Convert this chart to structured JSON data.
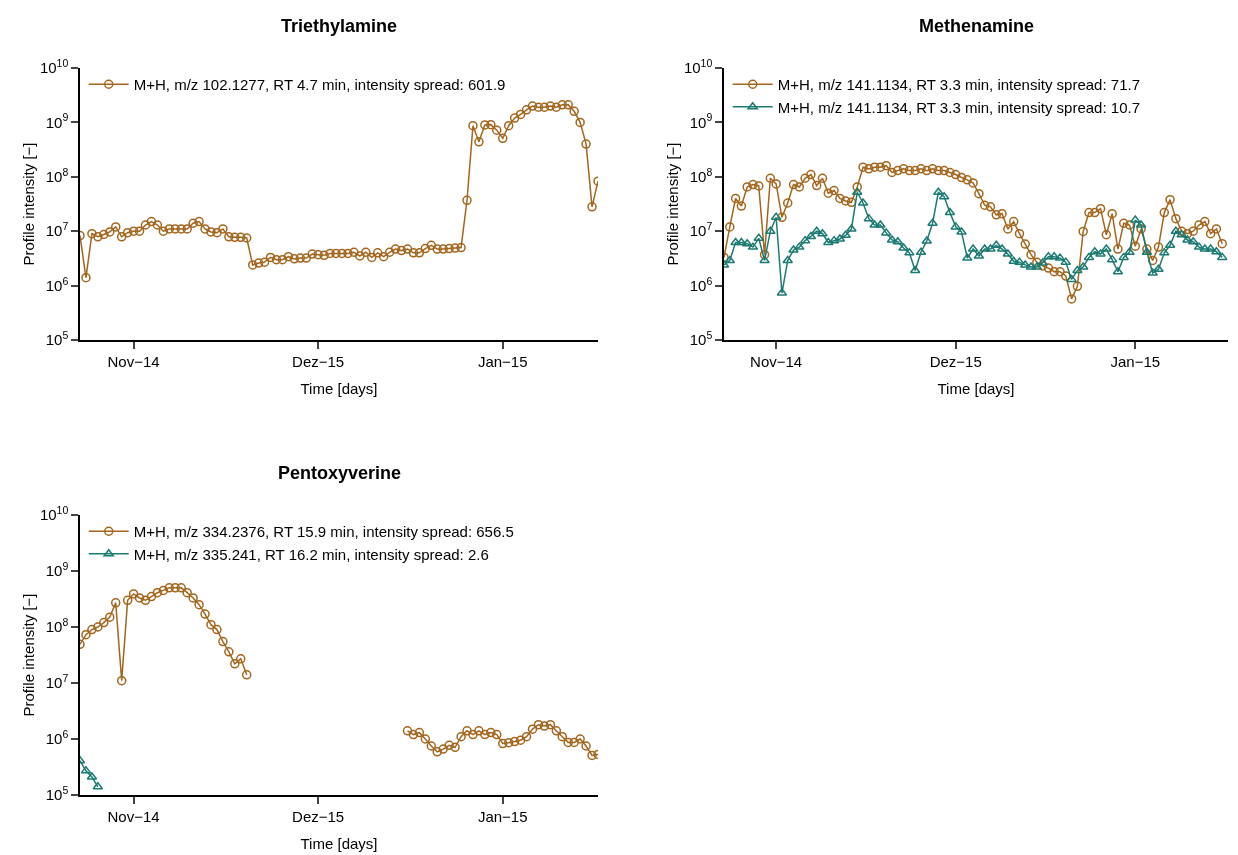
{
  "chart_data": [
    {
      "type": "line",
      "title": "Triethylamine",
      "xlabel": "Time [days]",
      "ylabel": "Profile intensity [−]",
      "log": "y",
      "legend": "top left",
      "categories": [
        null,
        null,
        null,
        null,
        null,
        null,
        null,
        null,
        null,
        "Nov−14",
        null,
        null,
        null,
        null,
        null,
        null,
        null,
        null,
        null,
        null,
        null,
        null,
        null,
        null,
        null,
        null,
        null,
        null,
        null,
        null,
        null,
        null,
        null,
        null,
        null,
        null,
        null,
        null,
        null,
        null,
        "Dez−15",
        null,
        null,
        null,
        null,
        null,
        null,
        null,
        null,
        null,
        null,
        null,
        null,
        null,
        null,
        null,
        null,
        null,
        null,
        null,
        null,
        null,
        null,
        null,
        null,
        null,
        null,
        null,
        null,
        null,
        null,
        "Jan−15",
        null,
        null,
        null,
        null,
        null,
        null,
        null,
        null,
        null,
        null,
        null,
        null,
        null,
        null,
        null,
        null
      ],
      "ylim": [
        100000.0,
        10000000000.0
      ],
      "yticks": [
        {
          "value": 100000.0,
          "label": "10$^{5}$"
        },
        {
          "value": 1000000.0,
          "label": "10$^{6}$"
        },
        {
          "value": 10000000.0,
          "label": "10$^{7}$"
        },
        {
          "value": 100000000.0,
          "label": "10$^{8}$"
        },
        {
          "value": 1000000000.0,
          "label": "10$^{9}$"
        },
        {
          "value": 10000000000.0,
          "label": "10$^{10}$"
        }
      ],
      "series": [
        {
          "name": "M+H, m/z 102.1277, RT 4.7 min, intensity spread: 601.9",
          "color": "#a5651c",
          "marker": "circle",
          "values": [
            8300000.0,
            1400000.0,
            9000000.0,
            7900000.0,
            8700000.0,
            9700000.0,
            12000000.0,
            7900000.0,
            9400000.0,
            10000000.0,
            10000000.0,
            13000000.0,
            15000000.0,
            13000000.0,
            10000000.0,
            11000000.0,
            11000000.0,
            11000000.0,
            11000000.0,
            14000000.0,
            15000000.0,
            11000000.0,
            9700000.0,
            9400000.0,
            11000000.0,
            7900000.0,
            7700000.0,
            7700000.0,
            7500000.0,
            2400000.0,
            2600000.0,
            2700000.0,
            3300000.0,
            3000000.0,
            3000000.0,
            3400000.0,
            3100000.0,
            3200000.0,
            3200000.0,
            3800000.0,
            3700000.0,
            3600000.0,
            3900000.0,
            3900000.0,
            3900000.0,
            3900000.0,
            4100000.0,
            3500000.0,
            4100000.0,
            3300000.0,
            4000000.0,
            3400000.0,
            4100000.0,
            4700000.0,
            4400000.0,
            4700000.0,
            4000000.0,
            4000000.0,
            4800000.0,
            5500000.0,
            4700000.0,
            4700000.0,
            4800000.0,
            4900000.0,
            5000000.0,
            37000000.0,
            870000000.0,
            440000000.0,
            900000000.0,
            910000000.0,
            720000000.0,
            510000000.0,
            870000000.0,
            1200000000.0,
            1400000000.0,
            1700000000.0,
            2000000000.0,
            1900000000.0,
            1900000000.0,
            2000000000.0,
            1900000000.0,
            2100000000.0,
            2100000000.0,
            1600000000.0,
            1000000000.0,
            400000000.0,
            28000000.0,
            83000000.0
          ]
        }
      ]
    },
    {
      "type": "line",
      "title": "Methenamine",
      "xlabel": "Time [days]",
      "ylabel": "Profile intensity [−]",
      "log": "y",
      "legend": "top left",
      "categories": [
        null,
        null,
        null,
        null,
        null,
        null,
        null,
        null,
        null,
        "Nov−14",
        null,
        null,
        null,
        null,
        null,
        null,
        null,
        null,
        null,
        null,
        null,
        null,
        null,
        null,
        null,
        null,
        null,
        null,
        null,
        null,
        null,
        null,
        null,
        null,
        null,
        null,
        null,
        null,
        null,
        null,
        "Dez−15",
        null,
        null,
        null,
        null,
        null,
        null,
        null,
        null,
        null,
        null,
        null,
        null,
        null,
        null,
        null,
        null,
        null,
        null,
        null,
        null,
        null,
        null,
        null,
        null,
        null,
        null,
        null,
        null,
        null,
        null,
        "Jan−15",
        null,
        null,
        null,
        null,
        null,
        null,
        null,
        null,
        null,
        null,
        null,
        null,
        null,
        null,
        null,
        null
      ],
      "ylim": [
        100000.0,
        10000000000.0
      ],
      "yticks": [
        {
          "value": 100000.0,
          "label": "10$^{5}$"
        },
        {
          "value": 1000000.0,
          "label": "10$^{6}$"
        },
        {
          "value": 10000000.0,
          "label": "10$^{7}$"
        },
        {
          "value": 100000000.0,
          "label": "10$^{8}$"
        },
        {
          "value": 1000000000.0,
          "label": "10$^{9}$"
        },
        {
          "value": 10000000000.0,
          "label": "10$^{10}$"
        }
      ],
      "series": [
        {
          "name": "M+H, m/z 141.1134, RT 3.3 min, intensity spread: 71.7",
          "color": "#a5651c",
          "marker": "circle",
          "values": [
            3300000.0,
            12000000.0,
            40000000.0,
            29000000.0,
            65000000.0,
            72000000.0,
            68000000.0,
            3700000.0,
            94000000.0,
            74000000.0,
            18000000.0,
            33000000.0,
            72000000.0,
            65000000.0,
            94000000.0,
            110000000.0,
            69000000.0,
            94000000.0,
            50000000.0,
            56000000.0,
            40000000.0,
            36000000.0,
            34000000.0,
            65000000.0,
            150000000.0,
            140000000.0,
            150000000.0,
            150000000.0,
            160000000.0,
            120000000.0,
            130000000.0,
            140000000.0,
            130000000.0,
            130000000.0,
            140000000.0,
            130000000.0,
            140000000.0,
            130000000.0,
            130000000.0,
            120000000.0,
            110000000.0,
            97000000.0,
            88000000.0,
            77000000.0,
            49000000.0,
            30000000.0,
            28000000.0,
            20000000.0,
            21000000.0,
            11000000.0,
            15000000.0,
            9000000.0,
            5800000.0,
            3700000.0,
            2700000.0,
            2300000.0,
            2100000.0,
            1800000.0,
            1800000.0,
            1500000.0,
            570000.0,
            970000.0,
            9900000.0,
            22000000.0,
            22000000.0,
            26000000.0,
            8600000.0,
            21000000.0,
            4700000.0,
            14000000.0,
            13000000.0,
            5300000.0,
            11000000.0,
            4700000.0,
            2900000.0,
            5100000.0,
            22000000.0,
            38000000.0,
            17000000.0,
            10000000.0,
            9000000.0,
            10000000.0,
            13000000.0,
            15000000.0,
            9000000.0,
            11000000.0,
            5900000.0,
            null
          ]
        },
        {
          "name": "M+H, m/z 141.1134, RT 3.3 min, intensity spread: 10.7",
          "color": "#1b7a72",
          "marker": "triangle",
          "values": [
            2400000.0,
            2900000.0,
            6200000.0,
            6200000.0,
            5900000.0,
            5100000.0,
            7400000.0,
            2900000.0,
            10000000.0,
            18000000.0,
            730000.0,
            2900000.0,
            4500000.0,
            5100000.0,
            6700000.0,
            8000000.0,
            10000000.0,
            9000000.0,
            6200000.0,
            6700000.0,
            7200000.0,
            8400000.0,
            11000000.0,
            52000000.0,
            33000000.0,
            17000000.0,
            13000000.0,
            13000000.0,
            9300000.0,
            6900000.0,
            6400000.0,
            4900000.0,
            4000000.0,
            1900000.0,
            4100000.0,
            6600000.0,
            14000000.0,
            52000000.0,
            43000000.0,
            22000000.0,
            12000000.0,
            9700000.0,
            3200000.0,
            4700000.0,
            3500000.0,
            4700000.0,
            4700000.0,
            5500000.0,
            4700000.0,
            3800000.0,
            2800000.0,
            2700000.0,
            2400000.0,
            2200000.0,
            2200000.0,
            2600000.0,
            3400000.0,
            3400000.0,
            3200000.0,
            2700000.0,
            1300000.0,
            1900000.0,
            2200000.0,
            3300000.0,
            4200000.0,
            3800000.0,
            4700000.0,
            3000000.0,
            1800000.0,
            3300000.0,
            4100000.0,
            16000000.0,
            13000000.0,
            4100000.0,
            1700000.0,
            2000000.0,
            4000000.0,
            5500000.0,
            10000000.0,
            8600000.0,
            6900000.0,
            6400000.0,
            5100000.0,
            4700000.0,
            4700000.0,
            4200000.0,
            3300000.0,
            null
          ]
        }
      ]
    },
    {
      "type": "line",
      "title": "Pentoxyverine",
      "xlabel": "Time [days]",
      "ylabel": "Profile intensity [−]",
      "log": "y",
      "legend": "top left",
      "categories": [
        null,
        null,
        null,
        null,
        null,
        null,
        null,
        null,
        null,
        "Nov−14",
        null,
        null,
        null,
        null,
        null,
        null,
        null,
        null,
        null,
        null,
        null,
        null,
        null,
        null,
        null,
        null,
        null,
        null,
        null,
        null,
        null,
        null,
        null,
        null,
        null,
        null,
        null,
        null,
        null,
        null,
        "Dez−15",
        null,
        null,
        null,
        null,
        null,
        null,
        null,
        null,
        null,
        null,
        null,
        null,
        null,
        null,
        null,
        null,
        null,
        null,
        null,
        null,
        null,
        null,
        null,
        null,
        null,
        null,
        null,
        null,
        null,
        null,
        "Jan−15",
        null,
        null,
        null,
        null,
        null,
        null,
        null,
        null,
        null,
        null,
        null,
        null,
        null,
        null,
        null,
        null
      ],
      "ylim": [
        100000.0,
        10000000000.0
      ],
      "yticks": [
        {
          "value": 100000.0,
          "label": "10$^{5}$"
        },
        {
          "value": 1000000.0,
          "label": "10$^{6}$"
        },
        {
          "value": 10000000.0,
          "label": "10$^{7}$"
        },
        {
          "value": 100000000.0,
          "label": "10$^{8}$"
        },
        {
          "value": 1000000000.0,
          "label": "10$^{9}$"
        },
        {
          "value": 10000000000.0,
          "label": "10$^{10}$"
        }
      ],
      "series": [
        {
          "name": "M+H, m/z 334.2376, RT 15.9 min, intensity spread: 656.5",
          "color": "#a5651c",
          "marker": "circle",
          "values": [
            49000000.0,
            73000000.0,
            90000000.0,
            100000000.0,
            120000000.0,
            150000000.0,
            270000000.0,
            11000000.0,
            300000000.0,
            390000000.0,
            330000000.0,
            300000000.0,
            350000000.0,
            410000000.0,
            450000000.0,
            500000000.0,
            500000000.0,
            500000000.0,
            410000000.0,
            330000000.0,
            250000000.0,
            170000000.0,
            110000000.0,
            90000000.0,
            55000000.0,
            36000000.0,
            22000000.0,
            27000000.0,
            14000000.0,
            null,
            null,
            null,
            null,
            null,
            null,
            null,
            null,
            null,
            null,
            null,
            null,
            null,
            null,
            null,
            null,
            null,
            null,
            null,
            null,
            null,
            null,
            null,
            null,
            null,
            null,
            1400000.0,
            1200000.0,
            1300000.0,
            1000000.0,
            750000.0,
            590000.0,
            660000.0,
            770000.0,
            710000.0,
            1100000.0,
            1400000.0,
            1200000.0,
            1400000.0,
            1200000.0,
            1300000.0,
            1200000.0,
            830000.0,
            860000.0,
            900000.0,
            950000.0,
            1100000.0,
            1500000.0,
            1800000.0,
            1700000.0,
            1800000.0,
            1400000.0,
            1100000.0,
            870000.0,
            870000.0,
            1000000.0,
            750000.0,
            510000.0,
            530000.0
          ]
        },
        {
          "name": "M+H, m/z 335.241, RT 16.2 min, intensity spread: 2.6",
          "color": "#1b7a72",
          "marker": "triangle",
          "values": [
            410000.0,
            270000.0,
            210000.0,
            140000.0,
            null,
            null,
            null,
            null,
            null,
            null,
            null,
            null,
            null,
            null,
            null,
            null,
            null,
            null,
            null,
            null,
            null,
            null,
            null,
            null,
            null,
            null,
            null,
            null,
            null,
            null,
            null,
            null,
            null,
            null,
            null,
            null,
            null,
            null,
            null,
            null,
            null,
            null,
            null,
            null,
            null,
            null,
            null,
            null,
            null,
            null,
            null,
            null,
            null,
            null,
            null,
            null,
            null,
            null,
            null,
            null,
            null,
            null,
            null,
            null,
            null,
            null,
            null,
            null,
            null,
            null,
            null,
            null,
            null,
            null,
            null,
            null,
            null,
            null,
            null,
            null,
            null,
            null,
            null,
            null,
            null,
            null,
            null,
            null
          ]
        }
      ]
    }
  ]
}
